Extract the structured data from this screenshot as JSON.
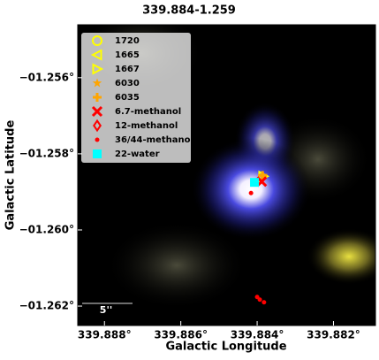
{
  "chart_data": {
    "type": "scatter",
    "title": "339.884-1.259",
    "x_label": "Galactic Longitude",
    "y_label": "Galactic Latitude",
    "annotation": "5''",
    "xlim": [
      339.8887,
      339.8809
    ],
    "ylim": [
      -1.26251,
      -1.25461
    ],
    "xticks": [
      {
        "value": 339.888,
        "label": "339.888°"
      },
      {
        "value": 339.886,
        "label": "339.886°"
      },
      {
        "value": 339.884,
        "label": "339.884°"
      },
      {
        "value": 339.882,
        "label": "339.882°"
      }
    ],
    "yticks": [
      {
        "value": -1.256,
        "label": "−01.256°"
      },
      {
        "value": -1.258,
        "label": "−01.258°"
      },
      {
        "value": -1.26,
        "label": "−01.260°"
      },
      {
        "value": -1.262,
        "label": "−01.262°"
      }
    ],
    "legend": "upper left",
    "series": [
      {
        "name": "1720",
        "color": "#ffff00",
        "marker": "circle",
        "x": [],
        "y": []
      },
      {
        "name": "1665",
        "color": "#ffff00",
        "marker": "triangle-left",
        "x": [],
        "y": []
      },
      {
        "name": "1667",
        "color": "#ffff00",
        "marker": "triangle-right",
        "x": [
          339.88384
        ],
        "y": [
          -1.25859
        ]
      },
      {
        "name": "6030",
        "color": "#ffa500",
        "marker": "star",
        "x": [
          339.88384
        ],
        "y": [
          -1.25857
        ]
      },
      {
        "name": "6035",
        "color": "#ffa500",
        "marker": "plus",
        "x": [
          339.88386
        ],
        "y": [
          -1.25857
        ]
      },
      {
        "name": "6.7-methanol",
        "color": "#ff0000",
        "marker": "x",
        "x": [
          339.88388
        ],
        "y": [
          -1.25873
        ]
      },
      {
        "name": "12-methanol",
        "color": "#ff0000",
        "marker": "diamond",
        "x": [],
        "y": []
      },
      {
        "name": "36/44-methanol",
        "color": "#ff0000",
        "marker": "dot",
        "x": [
          339.88416,
          339.884,
          339.88393,
          339.88382
        ],
        "y": [
          -1.25903,
          -1.26176,
          -1.26183,
          -1.2619
        ]
      },
      {
        "name": "22-water",
        "color": "#00ffff",
        "marker": "square",
        "x": [
          339.88407
        ],
        "y": [
          -1.25875
        ]
      }
    ]
  }
}
